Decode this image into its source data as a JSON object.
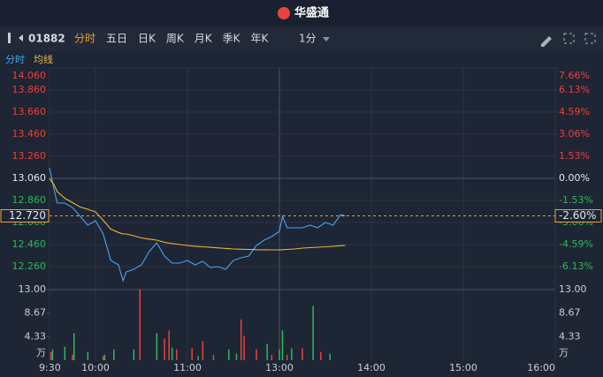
{
  "toolbar": {
    "logo": "华盛通",
    "code": "01882",
    "tabs": [
      "分时",
      "五日",
      "日K",
      "周K",
      "月K",
      "季K",
      "年K"
    ],
    "interval": "1分"
  },
  "chart_data": {
    "type": "line",
    "xticks": [
      "9:30",
      "10:00",
      "11:00",
      "13:00",
      "14:00",
      "15:00",
      "16:00"
    ],
    "ylim": [
      12.06,
      14.06
    ],
    "yticks": [
      {
        "value": 14.06,
        "label": "14.060"
      },
      {
        "value": 13.86,
        "label": "13.860"
      },
      {
        "value": 13.66,
        "label": "13.660"
      },
      {
        "value": 13.46,
        "label": "13.460"
      },
      {
        "value": 13.26,
        "label": "13.260"
      },
      {
        "value": 13.06,
        "label": "13.060"
      },
      {
        "value": 12.86,
        "label": "12.860"
      },
      {
        "value": 12.66,
        "label": "12.660"
      },
      {
        "value": 12.46,
        "label": "12.460"
      },
      {
        "value": 12.26,
        "label": "12.260"
      }
    ],
    "y2lim": [
      -7.66,
      7.66
    ],
    "y2ticks": [
      {
        "value": 7.66,
        "label": "7.66%"
      },
      {
        "value": 6.13,
        "label": "6.13%"
      },
      {
        "value": 4.59,
        "label": "4.59%"
      },
      {
        "value": 3.06,
        "label": "3.06%"
      },
      {
        "value": 1.53,
        "label": "1.53%"
      },
      {
        "value": 0,
        "label": "0.00%"
      },
      {
        "value": -1.53,
        "label": "-1.53%"
      },
      {
        "value": -3.06,
        "label": "-3.06%"
      },
      {
        "value": -4.59,
        "label": "-4.59%"
      },
      {
        "value": -6.13,
        "label": "-6.13%"
      }
    ],
    "current": {
      "value": 12.72,
      "label": "12.720",
      "pct": -2.6,
      "pct_label": "-2.60%"
    },
    "x": [
      "9:30",
      "9:33",
      "9:35",
      "9:40",
      "9:45",
      "9:50",
      "9:55",
      "10:00",
      "10:05",
      "10:10",
      "10:15",
      "10:18",
      "10:20",
      "10:25",
      "10:30",
      "10:35",
      "10:40",
      "10:45",
      "10:50",
      "10:55",
      "11:00",
      "11:05",
      "11:10",
      "11:15",
      "11:20",
      "11:25",
      "11:30",
      "11:35",
      "11:40",
      "11:45",
      "11:50",
      "11:55",
      "13:00",
      "13:02",
      "13:05",
      "13:10",
      "13:15",
      "13:20",
      "13:25",
      "13:30",
      "13:35",
      "13:40",
      "13:43"
    ],
    "series": [
      {
        "name": "分时",
        "color": "#4aa3f0",
        "values": [
          13.156,
          12.956,
          12.836,
          12.836,
          12.796,
          12.716,
          12.636,
          12.676,
          12.556,
          12.316,
          12.276,
          12.132,
          12.212,
          12.236,
          12.276,
          12.396,
          12.476,
          12.356,
          12.292,
          12.292,
          12.316,
          12.276,
          12.308,
          12.252,
          12.26,
          12.236,
          12.316,
          12.34,
          12.356,
          12.452,
          12.5,
          12.532,
          12.58,
          12.716,
          12.612,
          12.612,
          12.612,
          12.636,
          12.612,
          12.66,
          12.636,
          12.732,
          12.72
        ]
      },
      {
        "name": "均线",
        "color": "#e8b93a",
        "values": [
          13.06,
          13.0,
          12.94,
          12.88,
          12.84,
          12.8,
          12.78,
          12.756,
          12.68,
          12.6,
          12.57,
          12.556,
          12.556,
          12.54,
          12.52,
          12.51,
          12.5,
          12.48,
          12.47,
          12.46,
          12.452,
          12.445,
          12.44,
          12.435,
          12.43,
          12.425,
          12.42,
          12.418,
          12.416,
          12.414,
          12.413,
          12.412,
          12.412,
          12.414,
          12.416,
          12.42,
          12.428,
          12.432,
          12.436,
          12.44,
          12.444,
          12.45,
          12.452
        ]
      }
    ],
    "volume": {
      "ylim": [
        0,
        13
      ],
      "unit": "万",
      "yticks": [
        {
          "value": 13,
          "label": "13.00"
        },
        {
          "value": 8.67,
          "label": "8.67"
        },
        {
          "value": 4.33,
          "label": "4.33"
        }
      ],
      "up": {
        "color": "#e8433f",
        "x": [
          "9:31",
          "9:45",
          "10:05",
          "10:29",
          "10:45",
          "10:48",
          "10:53",
          "11:03",
          "11:10",
          "11:17",
          "11:35",
          "11:37",
          "11:45",
          "11:55",
          "13:05",
          "13:15",
          "13:27"
        ],
        "values": [
          1.5,
          1.0,
          0.8,
          13.0,
          4.0,
          5.5,
          2.0,
          2.2,
          3.5,
          1.0,
          7.5,
          4.5,
          2.0,
          1.0,
          1.0,
          2.2,
          1.5
        ]
      },
      "down": {
        "color": "#2fb85a",
        "x": [
          "9:32",
          "9:40",
          "9:46",
          "9:55",
          "10:06",
          "10:12",
          "10:25",
          "10:40",
          "10:50",
          "11:07",
          "11:27",
          "11:32",
          "11:52",
          "12:00",
          "13:02",
          "13:08",
          "13:22",
          "13:33"
        ],
        "values": [
          2.0,
          2.5,
          5.0,
          1.5,
          1.0,
          2.0,
          2.0,
          5.0,
          2.3,
          0.8,
          2.0,
          1.2,
          3.0,
          2.0,
          5.5,
          2.2,
          10.0,
          1.2
        ]
      }
    }
  }
}
